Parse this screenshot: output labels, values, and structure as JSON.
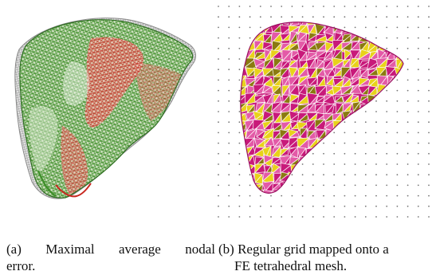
{
  "figure": {
    "panel_a": {
      "caption_line1_words": [
        "(a)",
        "Maximal",
        "average",
        "nodal"
      ],
      "caption_line2": "error.",
      "colors": {
        "red_mesh": "#c8271f",
        "green_mesh": "#3f8f2a",
        "gray_mesh": "#9a9a9a"
      }
    },
    "panel_b": {
      "caption_line1": "(b) Regular grid mapped onto a",
      "caption_line2": "FE tetrahedral mesh.",
      "colors": {
        "magenta": "#c8197a",
        "pink": "#e35aa7",
        "yellow": "#e8d21a",
        "dark_yellow": "#8a7a10",
        "grid_dot": "#777777"
      }
    }
  }
}
